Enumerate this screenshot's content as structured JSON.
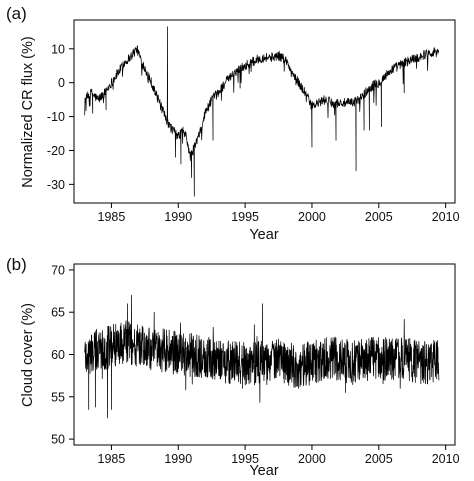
{
  "chart_data": [
    {
      "panel": "(a)",
      "type": "line",
      "title": "",
      "xlabel": "Year",
      "ylabel": "Normalized CR flux (%)",
      "xlim": [
        1982.2,
        2010.7
      ],
      "ylim": [
        -35.5,
        18.5
      ],
      "xticks": [
        1985,
        1990,
        1995,
        2000,
        2005,
        2010
      ],
      "yticks": [
        -30,
        -20,
        -10,
        0,
        10
      ],
      "grid": false,
      "legend": "none",
      "series": [
        {
          "points": [
            [
              1983.0,
              -5
            ],
            [
              1983.5,
              -3
            ],
            [
              1984.0,
              -5
            ],
            [
              1984.5,
              -3
            ],
            [
              1985.0,
              0
            ],
            [
              1985.5,
              3
            ],
            [
              1986.0,
              6
            ],
            [
              1986.5,
              8
            ],
            [
              1986.9,
              10
            ],
            [
              1987.3,
              6
            ],
            [
              1987.8,
              2
            ],
            [
              1988.3,
              -3
            ],
            [
              1988.8,
              -8
            ],
            [
              1989.2,
              -12
            ],
            [
              1989.6,
              -14
            ],
            [
              1990.0,
              -16
            ],
            [
              1990.3,
              -14
            ],
            [
              1990.6,
              -16
            ],
            [
              1990.9,
              -22
            ],
            [
              1991.3,
              -18
            ],
            [
              1991.7,
              -14
            ],
            [
              1992.0,
              -9
            ],
            [
              1992.5,
              -5
            ],
            [
              1993.0,
              -3
            ],
            [
              1993.5,
              0
            ],
            [
              1994.0,
              2
            ],
            [
              1994.5,
              4
            ],
            [
              1995.0,
              5
            ],
            [
              1995.5,
              6
            ],
            [
              1996.0,
              7
            ],
            [
              1996.5,
              7.5
            ],
            [
              1997.0,
              7.5
            ],
            [
              1997.5,
              8
            ],
            [
              1998.0,
              7
            ],
            [
              1998.5,
              3
            ],
            [
              1999.0,
              0
            ],
            [
              1999.5,
              -3
            ],
            [
              2000.0,
              -7
            ],
            [
              2000.5,
              -6
            ],
            [
              2001.0,
              -5
            ],
            [
              2001.5,
              -6
            ],
            [
              2002.0,
              -6
            ],
            [
              2002.5,
              -6
            ],
            [
              2003.0,
              -6
            ],
            [
              2003.5,
              -5
            ],
            [
              2004.0,
              -3
            ],
            [
              2004.5,
              -1
            ],
            [
              2005.0,
              0
            ],
            [
              2005.5,
              2
            ],
            [
              2006.0,
              4
            ],
            [
              2006.5,
              5
            ],
            [
              2007.0,
              6
            ],
            [
              2007.5,
              7
            ],
            [
              2008.0,
              7.5
            ],
            [
              2008.5,
              8.5
            ],
            [
              2009.0,
              9
            ],
            [
              2009.5,
              9.5
            ]
          ],
          "spikes": [
            [
              1989.2,
              16.5
            ],
            [
              1989.8,
              -22
            ],
            [
              1991.2,
              -33.5
            ],
            [
              1991.0,
              -28
            ],
            [
              2000.0,
              -19
            ],
            [
              2001.8,
              -17
            ],
            [
              2003.3,
              -26
            ],
            [
              2003.9,
              -14
            ],
            [
              2004.3,
              -14
            ],
            [
              2005.2,
              -13
            ],
            [
              2006.9,
              -3
            ],
            [
              1983.6,
              -9
            ],
            [
              1984.6,
              -8
            ],
            [
              1992.6,
              -17
            ],
            [
              1990.2,
              -24
            ],
            [
              2009.5,
              12
            ]
          ]
        }
      ]
    },
    {
      "panel": "(b)",
      "type": "line",
      "title": "",
      "xlabel": "Year",
      "ylabel": "Cloud cover (%)",
      "xlim": [
        1982.2,
        2010.7
      ],
      "ylim": [
        49.3,
        70.7
      ],
      "xticks": [
        1985,
        1990,
        1995,
        2000,
        2005,
        2010
      ],
      "yticks": [
        50,
        55,
        60,
        65,
        70
      ],
      "grid": false,
      "legend": "none",
      "series": [
        {
          "points": [
            [
              1983.0,
              60
            ],
            [
              1984.0,
              60.5
            ],
            [
              1985.0,
              61
            ],
            [
              1986.0,
              61.5
            ],
            [
              1987.0,
              61
            ],
            [
              1988.0,
              60.5
            ],
            [
              1989.0,
              60.5
            ],
            [
              1990.0,
              60
            ],
            [
              1991.0,
              60
            ],
            [
              1992.0,
              59.5
            ],
            [
              1993.0,
              59.5
            ],
            [
              1994.0,
              59
            ],
            [
              1995.0,
              59
            ],
            [
              1996.0,
              59
            ],
            [
              1997.0,
              59.5
            ],
            [
              1998.0,
              59
            ],
            [
              1999.0,
              58.5
            ],
            [
              2000.0,
              59
            ],
            [
              2001.0,
              59.5
            ],
            [
              2002.0,
              59.5
            ],
            [
              2003.0,
              59
            ],
            [
              2004.0,
              59.5
            ],
            [
              2005.0,
              59.5
            ],
            [
              2006.0,
              59.5
            ],
            [
              2007.0,
              59.5
            ],
            [
              2008.0,
              59
            ],
            [
              2009.0,
              59
            ],
            [
              2009.5,
              59.5
            ]
          ],
          "spikes": [
            [
              1983.3,
              53.5
            ],
            [
              1983.8,
              53.8
            ],
            [
              1984.7,
              52.5
            ],
            [
              1985.0,
              53.5
            ],
            [
              1986.5,
              67
            ],
            [
              1986.2,
              66
            ],
            [
              1996.3,
              66
            ],
            [
              1988.2,
              65
            ],
            [
              2006.6,
              56
            ],
            [
              2002.5,
              55.5
            ],
            [
              1994.8,
              56
            ],
            [
              1999.0,
              56
            ]
          ]
        }
      ]
    }
  ]
}
